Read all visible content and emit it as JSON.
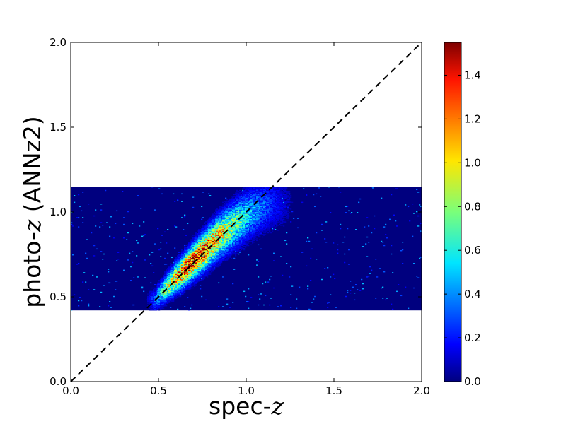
{
  "chart_data": {
    "type": "heatmap",
    "title": "",
    "xlabel_prefix": "spec-",
    "xlabel_var": "z",
    "ylabel_prefix": "photo-",
    "ylabel_var": "z",
    "ylabel_suffix": " (ANNz2)",
    "xlim": [
      0.0,
      2.0
    ],
    "ylim": [
      0.0,
      2.0
    ],
    "data_band_y": [
      0.42,
      1.15
    ],
    "x_ticks": [
      "0.0",
      "0.5",
      "1.0",
      "1.5",
      "2.0"
    ],
    "y_ticks": [
      "0.0",
      "0.5",
      "1.0",
      "1.5",
      "2.0"
    ],
    "reference_line": {
      "from": [
        0.0,
        0.0
      ],
      "to": [
        2.0,
        2.0
      ],
      "style": "dashed",
      "color": "#000000"
    },
    "density_ridge": {
      "x": [
        0.48,
        0.55,
        0.65,
        0.75,
        0.85,
        0.95,
        1.05,
        1.15
      ],
      "y": [
        0.48,
        0.56,
        0.66,
        0.76,
        0.86,
        0.94,
        1.01,
        1.05
      ],
      "peak_density": [
        0.35,
        0.9,
        1.35,
        1.4,
        1.1,
        0.75,
        0.45,
        0.25
      ]
    },
    "colorbar": {
      "min": 0.0,
      "max": 1.55,
      "ticks": [
        "0.0",
        "0.2",
        "0.4",
        "0.6",
        "0.8",
        "1.0",
        "1.2",
        "1.4"
      ],
      "colormap": "jet"
    },
    "background_color": "#00007f"
  }
}
